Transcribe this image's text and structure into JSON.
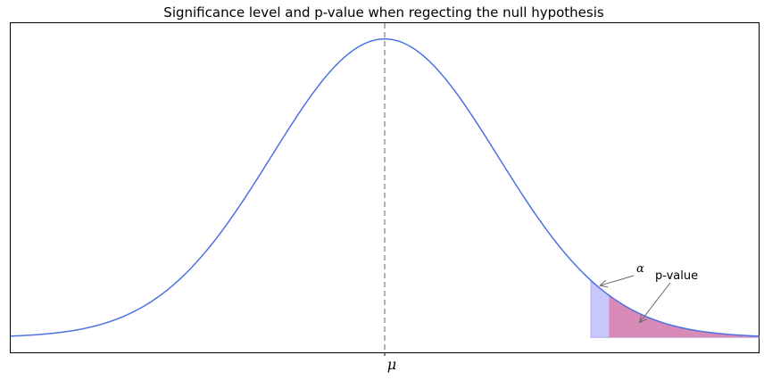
{
  "chart_data": {
    "type": "area",
    "title": "Significance level and p-value when regecting the null hypothesis",
    "xlabel": "",
    "ylabel": "",
    "xlim": [
      -3.3,
      3.3
    ],
    "ylim": [
      -0.02,
      0.42
    ],
    "distribution": "normal",
    "mean": 0,
    "std": 1,
    "x_ticks": [
      {
        "value": 0,
        "label": "μ"
      }
    ],
    "y_ticks": [],
    "mean_line": {
      "x": 0,
      "style": "dashed"
    },
    "shaded_regions": [
      {
        "name": "α",
        "x_start": 1.82,
        "x_end": 3.3
      },
      {
        "name": "p-value",
        "x_start": 1.98,
        "x_end": 3.3
      }
    ],
    "annotations": [
      {
        "text": "α",
        "points_to_x": 1.9
      },
      {
        "text": "p-value",
        "points_to_x": 2.25
      }
    ],
    "grid": false,
    "legend": "none",
    "colors": {
      "curve": "#4c72df",
      "mean_line": "#999999",
      "alpha_fill": "#c8c8fa",
      "alpha_edge": "#a9a9f0",
      "pvalue_fill": "#d98bb8",
      "arrow": "#666666"
    }
  }
}
